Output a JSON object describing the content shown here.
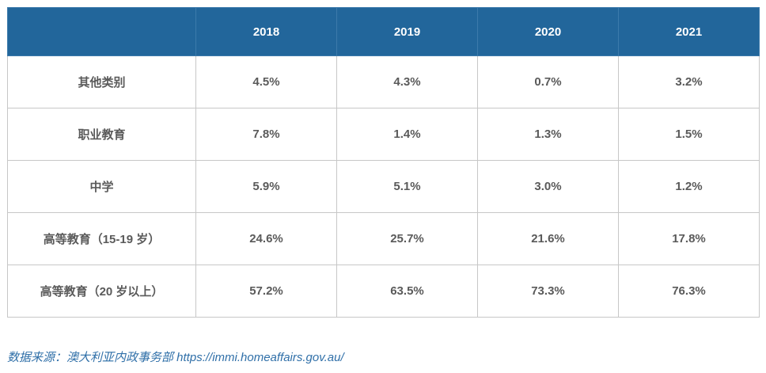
{
  "table": {
    "header": {
      "corner": "",
      "years": [
        "2018",
        "2019",
        "2020",
        "2021"
      ]
    },
    "rows": [
      {
        "label": "其他类别",
        "values": [
          "4.5%",
          "4.3%",
          "0.7%",
          "3.2%"
        ]
      },
      {
        "label": "职业教育",
        "values": [
          "7.8%",
          "1.4%",
          "1.3%",
          "1.5%"
        ]
      },
      {
        "label": "中学",
        "values": [
          "5.9%",
          "5.1%",
          "3.0%",
          "1.2%"
        ]
      },
      {
        "label": "高等教育（15-19 岁）",
        "values": [
          "24.6%",
          "25.7%",
          "21.6%",
          "17.8%"
        ]
      },
      {
        "label": "高等教育（20 岁以上）",
        "values": [
          "57.2%",
          "63.5%",
          "73.3%",
          "76.3%"
        ]
      }
    ]
  },
  "source": {
    "text": "数据来源：澳大利亚内政事务部 https://immi.homeaffairs.gov.au/"
  },
  "colors": {
    "header_bg": "#22669b",
    "header_text": "#ffffff",
    "body_text": "#5a5a5a",
    "grid": "#c7c7c7",
    "source_text": "#2f6fa8"
  }
}
